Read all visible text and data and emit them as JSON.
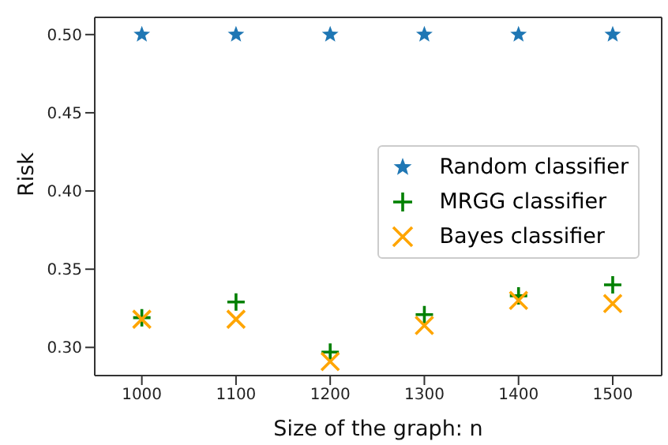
{
  "chart_data": {
    "type": "scatter",
    "xlabel": "Size of the graph: n",
    "ylabel": "Risk",
    "x": [
      1000,
      1100,
      1200,
      1300,
      1400,
      1500
    ],
    "xlim": [
      950,
      1552
    ],
    "xticks": [
      1000,
      1100,
      1200,
      1300,
      1400,
      1500
    ],
    "ylim": [
      0.282,
      0.511
    ],
    "yticks": [
      {
        "value": 0.3,
        "label": "0.30"
      },
      0.35,
      {
        "value": 0.4,
        "label": "0.40"
      },
      0.45,
      {
        "value": 0.5,
        "label": "0.50"
      }
    ],
    "legend": "right",
    "grid": false,
    "series": [
      {
        "name": "Random classifier",
        "color": "#1f77b4",
        "marker": "star",
        "values": [
          0.5,
          0.5,
          0.5,
          0.5,
          0.5,
          0.5
        ]
      },
      {
        "name": "MRGG classifier",
        "color": "#008000",
        "marker": "cross",
        "values": [
          0.319,
          0.329,
          0.297,
          0.321,
          0.333,
          0.34
        ]
      },
      {
        "name": "Bayes classifier",
        "color": "#ffa500",
        "marker": "x",
        "values": [
          0.318,
          0.318,
          0.291,
          0.314,
          0.33,
          0.328
        ]
      }
    ]
  }
}
